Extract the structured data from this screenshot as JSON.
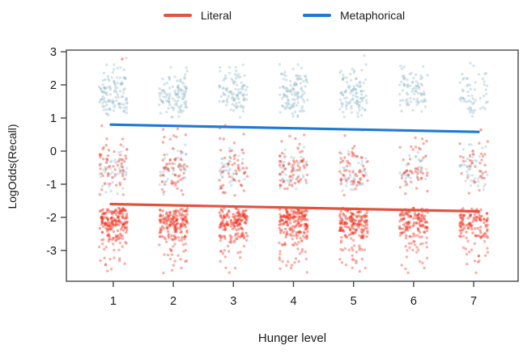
{
  "legend": {
    "items": [
      {
        "label": "Literal",
        "color": "#e2543f"
      },
      {
        "label": "Metaphorical",
        "color": "#1e7ad6"
      }
    ]
  },
  "axes": {
    "x": {
      "label": "Hunger level",
      "ticks": [
        1,
        2,
        3,
        4,
        5,
        6,
        7
      ],
      "range": [
        0.22,
        7.74
      ]
    },
    "y": {
      "label": "LogOdds(Recall)",
      "ticks": [
        3,
        2,
        1,
        0,
        -1,
        -2,
        -3
      ],
      "range": [
        -3.93,
        3.05
      ]
    }
  },
  "chart_data": {
    "type": "scatter",
    "title": "",
    "xlabel": "Hunger level",
    "ylabel": "LogOdds(Recall)",
    "x_ticks": [
      1,
      2,
      3,
      4,
      5,
      6,
      7
    ],
    "y_ticks": [
      3,
      2,
      1,
      0,
      -1,
      -2,
      -3
    ],
    "xlim": [
      0.22,
      7.74
    ],
    "ylim": [
      -3.93,
      3.05
    ],
    "grid": false,
    "legend_position": "top",
    "series": [
      {
        "name": "Literal",
        "kind": "trend_line",
        "color": "#e2543f",
        "points": [
          [
            0.96,
            -1.6
          ],
          [
            7.08,
            -1.82
          ]
        ]
      },
      {
        "name": "Metaphorical",
        "kind": "trend_line",
        "color": "#1e7ad6",
        "points": [
          [
            0.96,
            0.8
          ],
          [
            7.08,
            0.58
          ]
        ]
      }
    ],
    "point_clusters": {
      "x_levels": [
        1,
        2,
        3,
        4,
        5,
        6,
        7
      ],
      "x_jitter": 0.235,
      "point_radius": 1.7,
      "point_colors": {
        "literal": "#ee3524",
        "metaphorical": "#8fb8c8"
      },
      "bands": [
        {
          "name": "metaphorical-high",
          "series": "Metaphorical",
          "color": "#8fb8c8",
          "opacity": 0.36,
          "distribution": "gaussian",
          "y_mean": 1.72,
          "y_sd": 0.38,
          "y_min": 1.02,
          "y_max": 2.92,
          "counts": [
            115,
            108,
            98,
            112,
            102,
            82,
            58
          ]
        },
        {
          "name": "middle-metaphorical",
          "series": "Metaphorical",
          "color": "#8fb8c8",
          "opacity": 0.36,
          "distribution": "gaussian",
          "y_mean": -0.6,
          "y_sd": 0.38,
          "y_min": -1.32,
          "y_max": 0.22,
          "counts": [
            48,
            42,
            40,
            45,
            40,
            35,
            46
          ]
        },
        {
          "name": "middle-literal",
          "series": "Literal",
          "color": "#ee3524",
          "opacity": 0.4,
          "distribution": "gaussian",
          "y_mean": -0.55,
          "y_sd": 0.5,
          "y_min": -1.34,
          "y_max": 1.05,
          "counts": [
            55,
            58,
            52,
            64,
            58,
            45,
            32
          ]
        },
        {
          "name": "literal-low-dense",
          "series": "Literal",
          "color": "#ee3524",
          "opacity": 0.45,
          "distribution": "gaussian",
          "y_mean": -2.06,
          "y_sd": 0.28,
          "y_min": -2.62,
          "y_max": -1.72,
          "counts": [
            150,
            140,
            132,
            148,
            138,
            112,
            100
          ]
        },
        {
          "name": "literal-low-tail",
          "series": "Literal",
          "color": "#ee3524",
          "opacity": 0.38,
          "distribution": "decay",
          "y_min": -3.7,
          "y_max": -2.55,
          "counts": [
            42,
            40,
            38,
            44,
            40,
            34,
            28
          ]
        }
      ],
      "outlier_points": [
        {
          "series": "Literal",
          "x": 1.15,
          "y": 2.78
        },
        {
          "series": "Literal",
          "x": 7.12,
          "y": 0.64
        }
      ]
    }
  }
}
